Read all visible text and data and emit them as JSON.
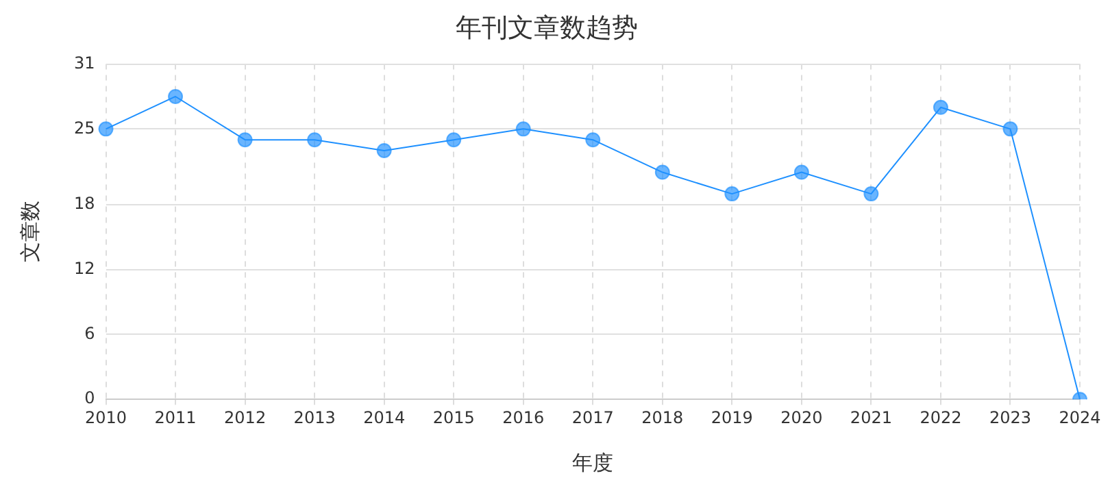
{
  "chart_data": {
    "type": "line",
    "title": "年刊文章数趋势",
    "xlabel": "年度",
    "ylabel": "文章数",
    "categories": [
      "2010",
      "2011",
      "2012",
      "2013",
      "2014",
      "2015",
      "2016",
      "2017",
      "2018",
      "2019",
      "2020",
      "2021",
      "2022",
      "2023",
      "2024"
    ],
    "series": [
      {
        "color": "#1e90ff",
        "values": [
          25,
          28,
          24,
          24,
          23,
          24,
          25,
          24,
          21,
          19,
          21,
          19,
          27,
          25,
          0
        ]
      }
    ],
    "ylim": [
      0,
      31
    ],
    "yticks": [
      0,
      6,
      12,
      18,
      25,
      31
    ],
    "grid": true,
    "marker": "circle",
    "line_style": "solid",
    "legend": false
  }
}
